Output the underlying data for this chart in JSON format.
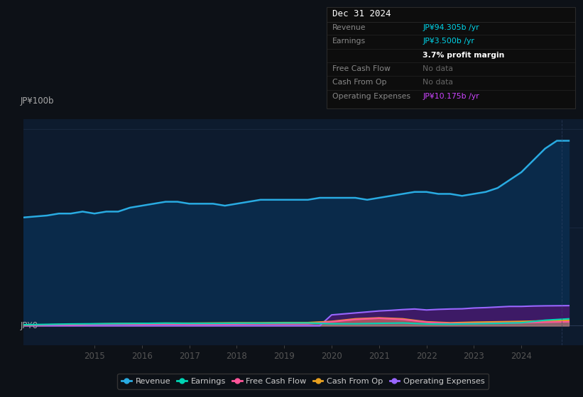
{
  "background_color": "#0d1117",
  "plot_bg_color": "#0d1b2e",
  "ylabel": "JP¥100b",
  "y0_label": "JP¥0",
  "xticklabels": [
    "2015",
    "2016",
    "2017",
    "2018",
    "2019",
    "2020",
    "2021",
    "2022",
    "2023",
    "2024"
  ],
  "xtick_positions": [
    2015,
    2016,
    2017,
    2018,
    2019,
    2020,
    2021,
    2022,
    2023,
    2024
  ],
  "xlim": [
    2013.5,
    2025.3
  ],
  "ylim": [
    -10,
    105
  ],
  "hline_y50": 50,
  "hline_y100": 100,
  "hline_y0": 0,
  "info_box": {
    "date": "Dec 31 2024",
    "rows": [
      {
        "label": "Revenue",
        "value": "JP¥94.305b /yr",
        "val_color": "#00d4e8"
      },
      {
        "label": "Earnings",
        "value": "JP¥3.500b /yr",
        "val_color": "#00d4e8"
      },
      {
        "label": "",
        "value": "3.7% profit margin",
        "val_color": "#ffffff"
      },
      {
        "label": "Free Cash Flow",
        "value": "No data",
        "val_color": "#666666"
      },
      {
        "label": "Cash From Op",
        "value": "No data",
        "val_color": "#666666"
      },
      {
        "label": "Operating Expenses",
        "value": "JP¥10.175b /yr",
        "val_color": "#cc44ff"
      }
    ],
    "box_facecolor": "#0d0d0d",
    "box_edgecolor": "#2a2a2a",
    "date_color": "#ffffff",
    "label_color": "#888888",
    "sep_color": "#2a2a2a"
  },
  "revenue": {
    "x": [
      2013.5,
      2013.75,
      2014.0,
      2014.25,
      2014.5,
      2014.75,
      2015.0,
      2015.25,
      2015.5,
      2015.75,
      2016.0,
      2016.25,
      2016.5,
      2016.75,
      2017.0,
      2017.25,
      2017.5,
      2017.75,
      2018.0,
      2018.25,
      2018.5,
      2018.75,
      2019.0,
      2019.25,
      2019.5,
      2019.75,
      2020.0,
      2020.25,
      2020.5,
      2020.75,
      2021.0,
      2021.25,
      2021.5,
      2021.75,
      2022.0,
      2022.25,
      2022.5,
      2022.75,
      2023.0,
      2023.25,
      2023.5,
      2023.75,
      2024.0,
      2024.25,
      2024.5,
      2024.75,
      2025.0
    ],
    "y": [
      55,
      55.5,
      56,
      57,
      57,
      58,
      57,
      58,
      58,
      60,
      61,
      62,
      63,
      63,
      62,
      62,
      62,
      61,
      62,
      63,
      64,
      64,
      64,
      64,
      64,
      65,
      65,
      65,
      65,
      64,
      65,
      66,
      67,
      68,
      68,
      67,
      67,
      66,
      67,
      68,
      70,
      74,
      78,
      84,
      90,
      94,
      94
    ],
    "color": "#29abe2",
    "fill_color": "#0a2a4a",
    "linewidth": 1.8
  },
  "operating_expenses": {
    "x": [
      2013.5,
      2014.0,
      2014.5,
      2015.0,
      2015.5,
      2016.0,
      2016.5,
      2017.0,
      2017.5,
      2018.0,
      2018.5,
      2019.0,
      2019.5,
      2019.75,
      2020.0,
      2020.25,
      2020.5,
      2020.75,
      2021.0,
      2021.25,
      2021.5,
      2021.75,
      2022.0,
      2022.25,
      2022.5,
      2022.75,
      2023.0,
      2023.25,
      2023.5,
      2023.75,
      2024.0,
      2024.25,
      2024.5,
      2024.75,
      2025.0
    ],
    "y": [
      0.0,
      0.0,
      0.0,
      0.0,
      0.0,
      0.0,
      0.0,
      0.0,
      0.0,
      0.0,
      0.0,
      0.0,
      0.0,
      0.0,
      5.5,
      6.0,
      6.5,
      7.0,
      7.5,
      7.8,
      8.2,
      8.5,
      8.0,
      8.3,
      8.5,
      8.6,
      9.0,
      9.2,
      9.5,
      9.8,
      9.8,
      10.0,
      10.1,
      10.15,
      10.2
    ],
    "color": "#9966ff",
    "fill_color": "#3d1a66",
    "linewidth": 1.5
  },
  "cash_from_op": {
    "x": [
      2013.5,
      2014.0,
      2014.5,
      2015.0,
      2015.5,
      2016.0,
      2016.5,
      2017.0,
      2017.5,
      2018.0,
      2018.5,
      2019.0,
      2019.5,
      2020.0,
      2020.5,
      2021.0,
      2021.5,
      2022.0,
      2022.5,
      2023.0,
      2023.5,
      2024.0,
      2024.5,
      2025.0
    ],
    "y": [
      0.3,
      0.5,
      0.7,
      0.9,
      1.1,
      1.2,
      1.3,
      1.3,
      1.4,
      1.5,
      1.5,
      1.6,
      1.6,
      2.2,
      3.5,
      4.0,
      3.5,
      2.0,
      1.5,
      1.8,
      2.0,
      2.2,
      2.5,
      2.8
    ],
    "color": "#e8a020",
    "linewidth": 1.5
  },
  "free_cash_flow": {
    "x": [
      2013.5,
      2014.0,
      2014.5,
      2015.0,
      2015.5,
      2016.0,
      2016.5,
      2017.0,
      2017.5,
      2018.0,
      2018.5,
      2019.0,
      2019.5,
      2020.0,
      2020.5,
      2021.0,
      2021.5,
      2022.0,
      2022.5,
      2023.0,
      2023.5,
      2024.0,
      2024.5,
      2025.0
    ],
    "y": [
      0.4,
      0.5,
      0.6,
      0.8,
      0.9,
      0.8,
      0.9,
      0.8,
      0.8,
      0.9,
      1.0,
      1.0,
      1.0,
      2.0,
      3.2,
      3.8,
      3.2,
      1.8,
      1.2,
      1.2,
      1.4,
      1.5,
      1.8,
      2.0
    ],
    "color": "#ff5599",
    "linewidth": 1.5
  },
  "earnings": {
    "x": [
      2013.5,
      2014.0,
      2014.5,
      2015.0,
      2015.5,
      2016.0,
      2016.5,
      2017.0,
      2017.5,
      2018.0,
      2018.5,
      2019.0,
      2019.5,
      2020.0,
      2020.5,
      2021.0,
      2021.5,
      2022.0,
      2022.5,
      2023.0,
      2023.5,
      2024.0,
      2024.5,
      2025.0
    ],
    "y": [
      0.5,
      0.7,
      0.9,
      1.0,
      1.1,
      1.2,
      1.3,
      1.2,
      1.2,
      1.3,
      1.3,
      1.4,
      1.4,
      1.0,
      1.0,
      1.2,
      1.4,
      0.9,
      0.8,
      1.0,
      1.2,
      1.5,
      2.8,
      3.5
    ],
    "color": "#00d4b4",
    "linewidth": 1.5
  },
  "legend": [
    {
      "label": "Revenue",
      "color": "#29abe2"
    },
    {
      "label": "Earnings",
      "color": "#00d4b4"
    },
    {
      "label": "Free Cash Flow",
      "color": "#ff5599"
    },
    {
      "label": "Cash From Op",
      "color": "#e8a020"
    },
    {
      "label": "Operating Expenses",
      "color": "#9966ff"
    }
  ]
}
